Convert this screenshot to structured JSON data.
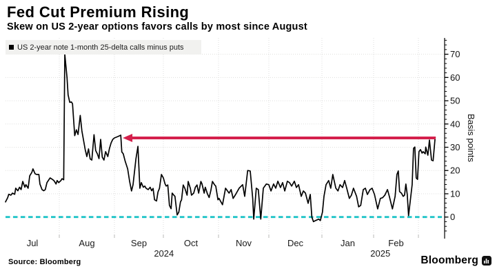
{
  "header": {
    "title": "Fed Cut Premium Rising",
    "subtitle": "Skew on US 2-year options favors calls by most since August"
  },
  "legend": {
    "label": "US 2-year note 1-month 25-delta calls minus puts",
    "swatch_color": "#000000"
  },
  "footer": {
    "source": "Source: Bloomberg",
    "brand": "Bloomberg"
  },
  "chart_data": {
    "type": "line",
    "title": "Fed Cut Premium Rising",
    "subtitle": "Skew on US 2-year options favors calls by most since August",
    "ylabel": "Basis points",
    "ylim": [
      -7.5,
      77
    ],
    "yticks": [
      0,
      10,
      20,
      30,
      40,
      50,
      60,
      70
    ],
    "y_minor_step": 2,
    "grid": true,
    "legend_position": "top-left",
    "x_months": [
      "Jul",
      "Aug",
      "Sep",
      "Oct",
      "Nov",
      "Dec",
      "Jan",
      "Feb"
    ],
    "x_years": [
      {
        "label": "2024",
        "month_frac": 3.01
      },
      {
        "label": "2025",
        "month_frac": 7.15
      }
    ],
    "zero_line": {
      "value": 0,
      "color": "#1fc4c8",
      "style": "dashed"
    },
    "annotation_arrow": {
      "y": 34,
      "from_month_frac": 8.33,
      "to_month_frac": 2.17,
      "direction": "left",
      "color": "#d4204c"
    },
    "series": [
      {
        "name": "US 2-year note 1-month 25-delta calls minus puts",
        "color": "#000000",
        "points": [
          [
            0.0,
            6.5
          ],
          [
            0.04,
            8.3
          ],
          [
            0.06,
            9.8
          ],
          [
            0.1,
            9.4
          ],
          [
            0.13,
            10.3
          ],
          [
            0.17,
            9.8
          ],
          [
            0.19,
            12.4
          ],
          [
            0.23,
            11.3
          ],
          [
            0.26,
            12.8
          ],
          [
            0.29,
            11.8
          ],
          [
            0.32,
            15.3
          ],
          [
            0.36,
            12.8
          ],
          [
            0.38,
            13.9
          ],
          [
            0.42,
            12.4
          ],
          [
            0.45,
            17.7
          ],
          [
            0.49,
            19.2
          ],
          [
            0.51,
            20.7
          ],
          [
            0.55,
            18.6
          ],
          [
            0.58,
            18.3
          ],
          [
            0.62,
            18.3
          ],
          [
            0.64,
            14.2
          ],
          [
            0.68,
            11.8
          ],
          [
            0.71,
            11.3
          ],
          [
            0.74,
            11.8
          ],
          [
            0.77,
            14.8
          ],
          [
            0.81,
            16.2
          ],
          [
            0.83,
            16.8
          ],
          [
            0.87,
            16.2
          ],
          [
            0.9,
            15.7
          ],
          [
            0.94,
            14.2
          ],
          [
            0.96,
            15.7
          ],
          [
            0.99,
            14.8
          ],
          [
            1.03,
            15.7
          ],
          [
            1.05,
            16.5
          ],
          [
            1.08,
            16.0
          ],
          [
            1.1,
            70.0
          ],
          [
            1.14,
            60.0
          ],
          [
            1.16,
            52.5
          ],
          [
            1.19,
            49.3
          ],
          [
            1.22,
            49.5
          ],
          [
            1.24,
            48.7
          ],
          [
            1.28,
            35.0
          ],
          [
            1.31,
            37.5
          ],
          [
            1.34,
            35.5
          ],
          [
            1.38,
            43.7
          ],
          [
            1.41,
            37.0
          ],
          [
            1.44,
            33.0
          ],
          [
            1.47,
            29.0
          ],
          [
            1.5,
            26.0
          ],
          [
            1.53,
            29.3
          ],
          [
            1.56,
            25.0
          ],
          [
            1.59,
            24.5
          ],
          [
            1.63,
            35.4
          ],
          [
            1.66,
            28.6
          ],
          [
            1.69,
            27.2
          ],
          [
            1.72,
            25.1
          ],
          [
            1.75,
            33.4
          ],
          [
            1.78,
            25.7
          ],
          [
            1.81,
            24.5
          ],
          [
            1.84,
            28.1
          ],
          [
            1.88,
            26.0
          ],
          [
            1.91,
            29.5
          ],
          [
            1.94,
            31.9
          ],
          [
            1.97,
            33.4
          ],
          [
            2.0,
            34.0
          ],
          [
            2.07,
            34.6
          ],
          [
            2.13,
            35.2
          ],
          [
            2.15,
            28.0
          ],
          [
            2.18,
            27.2
          ],
          [
            2.22,
            24.0
          ],
          [
            2.27,
            20.7
          ],
          [
            2.31,
            15.4
          ],
          [
            2.35,
            11.2
          ],
          [
            2.38,
            13.9
          ],
          [
            2.44,
            25.0
          ],
          [
            2.48,
            30.4
          ],
          [
            2.52,
            12.4
          ],
          [
            2.55,
            14.8
          ],
          [
            2.59,
            12.8
          ],
          [
            2.62,
            13.3
          ],
          [
            2.65,
            12.3
          ],
          [
            2.69,
            11.8
          ],
          [
            2.73,
            12.8
          ],
          [
            2.76,
            11.3
          ],
          [
            2.79,
            12.3
          ],
          [
            2.82,
            7.4
          ],
          [
            2.86,
            6.9
          ],
          [
            2.89,
            10.8
          ],
          [
            2.92,
            12.3
          ],
          [
            2.96,
            18.3
          ],
          [
            3.0,
            16.8
          ],
          [
            3.03,
            14.3
          ],
          [
            3.05,
            13.3
          ],
          [
            3.08,
            13.8
          ],
          [
            3.11,
            5.0
          ],
          [
            3.14,
            3.6
          ],
          [
            3.16,
            10.3
          ],
          [
            3.19,
            9.4
          ],
          [
            3.21,
            8.9
          ],
          [
            3.25,
            0.9
          ],
          [
            3.28,
            2.1
          ],
          [
            3.31,
            6.5
          ],
          [
            3.33,
            7.4
          ],
          [
            3.36,
            13.8
          ],
          [
            3.39,
            12.3
          ],
          [
            3.43,
            9.4
          ],
          [
            3.45,
            15.3
          ],
          [
            3.49,
            12.3
          ],
          [
            3.51,
            9.4
          ],
          [
            3.55,
            10.3
          ],
          [
            3.58,
            12.8
          ],
          [
            3.61,
            13.8
          ],
          [
            3.64,
            10.3
          ],
          [
            3.68,
            15.3
          ],
          [
            3.7,
            14.3
          ],
          [
            3.74,
            10.3
          ],
          [
            3.76,
            12.8
          ],
          [
            3.8,
            9.9
          ],
          [
            3.83,
            8.4
          ],
          [
            3.86,
            11.3
          ],
          [
            3.89,
            15.3
          ],
          [
            3.93,
            13.8
          ],
          [
            3.95,
            13.3
          ],
          [
            3.99,
            7.4
          ],
          [
            4.01,
            8.0
          ],
          [
            4.08,
            5.3
          ],
          [
            4.14,
            12.4
          ],
          [
            4.21,
            10.3
          ],
          [
            4.25,
            11.8
          ],
          [
            4.29,
            8.0
          ],
          [
            4.34,
            9.7
          ],
          [
            4.41,
            12.4
          ],
          [
            4.48,
            13.9
          ],
          [
            4.52,
            8.9
          ],
          [
            4.58,
            20.0
          ],
          [
            4.63,
            19.8
          ],
          [
            4.68,
            8.0
          ],
          [
            4.7,
            -0.9
          ],
          [
            4.75,
            12.4
          ],
          [
            4.79,
            11.8
          ],
          [
            4.84,
            -0.9
          ],
          [
            4.89,
            12.4
          ],
          [
            4.95,
            14.2
          ],
          [
            5.0,
            13.9
          ],
          [
            5.04,
            11.2
          ],
          [
            5.09,
            14.2
          ],
          [
            5.13,
            12.4
          ],
          [
            5.17,
            15.4
          ],
          [
            5.22,
            12.7
          ],
          [
            5.26,
            14.8
          ],
          [
            5.3,
            11.2
          ],
          [
            5.35,
            15.4
          ],
          [
            5.39,
            14.8
          ],
          [
            5.43,
            13.3
          ],
          [
            5.48,
            15.4
          ],
          [
            5.52,
            12.7
          ],
          [
            5.56,
            13.9
          ],
          [
            5.61,
            8.9
          ],
          [
            5.65,
            11.2
          ],
          [
            5.69,
            10.3
          ],
          [
            5.74,
            5.9
          ],
          [
            5.78,
            9.7
          ],
          [
            5.81,
            0.0
          ],
          [
            5.84,
            -2.0
          ],
          [
            5.88,
            -1.5
          ],
          [
            5.94,
            -0.9
          ],
          [
            5.97,
            -1.5
          ],
          [
            6.01,
            2.1
          ],
          [
            6.04,
            8.9
          ],
          [
            6.08,
            13.9
          ],
          [
            6.13,
            15.7
          ],
          [
            6.17,
            12.4
          ],
          [
            6.21,
            18.3
          ],
          [
            6.27,
            12.4
          ],
          [
            6.31,
            11.2
          ],
          [
            6.35,
            13.9
          ],
          [
            6.4,
            12.7
          ],
          [
            6.44,
            15.7
          ],
          [
            6.48,
            12.4
          ],
          [
            6.53,
            8.0
          ],
          [
            6.57,
            9.4
          ],
          [
            6.61,
            12.4
          ],
          [
            6.67,
            8.9
          ],
          [
            6.71,
            4.4
          ],
          [
            6.75,
            5.0
          ],
          [
            6.8,
            11.8
          ],
          [
            6.84,
            12.4
          ],
          [
            6.88,
            9.7
          ],
          [
            6.93,
            11.8
          ],
          [
            6.97,
            12.4
          ],
          [
            7.02,
            9.7
          ],
          [
            7.09,
            3.5
          ],
          [
            7.15,
            8.0
          ],
          [
            7.2,
            8.3
          ],
          [
            7.25,
            9.4
          ],
          [
            7.31,
            11.8
          ],
          [
            7.35,
            8.9
          ],
          [
            7.42,
            3.5
          ],
          [
            7.48,
            8.9
          ],
          [
            7.52,
            18.3
          ],
          [
            7.55,
            19.8
          ],
          [
            7.58,
            10.9
          ],
          [
            7.62,
            10.3
          ],
          [
            7.66,
            8.9
          ],
          [
            7.69,
            9.4
          ],
          [
            7.72,
            14.2
          ],
          [
            7.75,
            9.7
          ],
          [
            7.78,
            0.6
          ],
          [
            7.86,
            13.9
          ],
          [
            7.89,
            29.5
          ],
          [
            7.92,
            30.1
          ],
          [
            7.95,
            16.8
          ],
          [
            7.98,
            16.2
          ],
          [
            8.01,
            28.1
          ],
          [
            8.04,
            29.0
          ],
          [
            8.07,
            27.5
          ],
          [
            8.09,
            28.1
          ],
          [
            8.13,
            27.2
          ],
          [
            8.14,
            30.1
          ],
          [
            8.18,
            26.6
          ],
          [
            8.21,
            33.1
          ],
          [
            8.25,
            24.5
          ],
          [
            8.28,
            24.2
          ],
          [
            8.32,
            34.3
          ]
        ]
      }
    ]
  }
}
